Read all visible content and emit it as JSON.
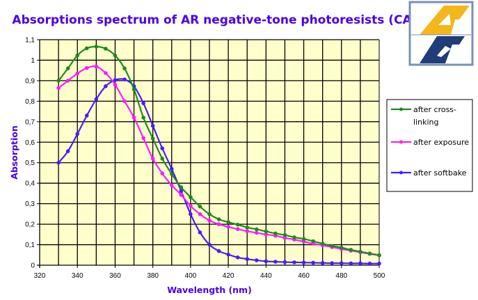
{
  "chart_data": {
    "type": "line",
    "title": "Absorptions spectrum of AR negative-tone photoresists (CAR)",
    "xlabel": "Wavelength (nm)",
    "ylabel": "Absorption",
    "xlim": [
      320,
      500
    ],
    "ylim": [
      0,
      1.1
    ],
    "grid": true,
    "legend_position": "right",
    "x_ticks": [
      "320",
      "340",
      "360",
      "380",
      "400",
      "420",
      "440",
      "460",
      "480",
      "500"
    ],
    "x_tick_values": [
      320,
      340,
      360,
      380,
      400,
      420,
      440,
      460,
      480,
      500
    ],
    "y_ticks": [
      "0",
      "0,1",
      "0,2",
      "0,3",
      "0,4",
      "0,5",
      "0,6",
      "0,7",
      "0,8",
      "0,9",
      "1",
      "1,1"
    ],
    "y_tick_values": [
      0,
      0.1,
      0.2,
      0.3,
      0.4,
      0.5,
      0.6,
      0.7,
      0.8,
      0.9,
      1.0,
      1.1
    ],
    "x": [
      330,
      335,
      340,
      345,
      350,
      355,
      360,
      365,
      370,
      375,
      380,
      385,
      390,
      395,
      400,
      405,
      410,
      415,
      420,
      425,
      430,
      435,
      440,
      445,
      450,
      455,
      460,
      465,
      470,
      475,
      480,
      485,
      490,
      495,
      500
    ],
    "series": [
      {
        "name": "after cross-\nlinking",
        "legend_lines": [
          "after cross-",
          "linking"
        ],
        "color": "#1e8a1e",
        "values": [
          0.9,
          0.96,
          1.023,
          1.058,
          1.066,
          1.056,
          1.023,
          0.96,
          0.858,
          0.72,
          0.618,
          0.52,
          0.445,
          0.38,
          0.332,
          0.286,
          0.249,
          0.224,
          0.21,
          0.198,
          0.184,
          0.175,
          0.165,
          0.155,
          0.147,
          0.136,
          0.128,
          0.117,
          0.105,
          0.094,
          0.086,
          0.075,
          0.066,
          0.057,
          0.049
        ]
      },
      {
        "name": "after exposure",
        "legend_lines": [
          "after exposure"
        ],
        "color": "#ff1aff",
        "values": [
          0.864,
          0.9,
          0.935,
          0.962,
          0.969,
          0.937,
          0.88,
          0.8,
          0.72,
          0.62,
          0.52,
          0.448,
          0.39,
          0.343,
          0.289,
          0.249,
          0.218,
          0.2,
          0.187,
          0.176,
          0.166,
          0.158,
          0.15,
          0.144,
          0.133,
          0.125,
          0.115,
          0.105,
          0.097,
          0.088,
          0.079,
          0.071,
          0.063,
          0.055,
          0.048
        ]
      },
      {
        "name": "after softbake",
        "legend_lines": [
          "after softbake"
        ],
        "color": "#4b1aff",
        "values": [
          0.5,
          0.556,
          0.64,
          0.73,
          0.81,
          0.873,
          0.903,
          0.906,
          0.873,
          0.79,
          0.68,
          0.57,
          0.47,
          0.362,
          0.249,
          0.16,
          0.1,
          0.069,
          0.052,
          0.038,
          0.03,
          0.024,
          0.019,
          0.017,
          0.015,
          0.014,
          0.013,
          0.012,
          0.011,
          0.01,
          0.01,
          0.009,
          0.009,
          0.008,
          0.008
        ]
      }
    ]
  },
  "colors": {
    "plot_background": "#ffffcc",
    "grid": "#000000",
    "title": "#4b00e6"
  },
  "logo": {
    "letters": "AR"
  }
}
